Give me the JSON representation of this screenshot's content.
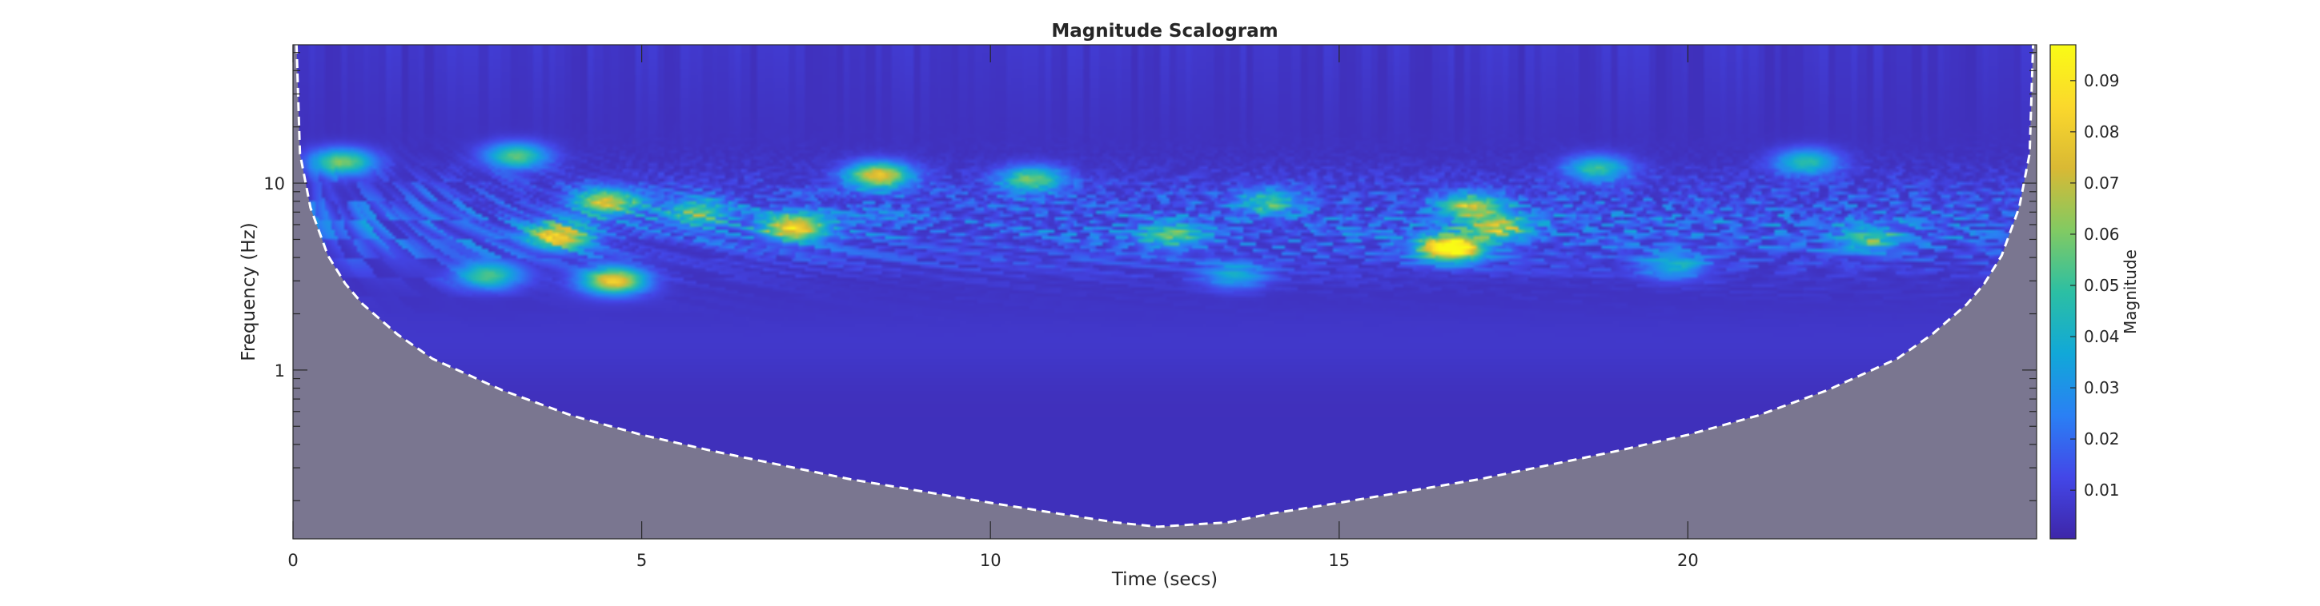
{
  "chart_data": {
    "type": "heatmap",
    "title": "Magnitude Scalogram",
    "xlabel": "Time (secs)",
    "ylabel": "Frequency (Hz)",
    "colorbar_label": "Magnitude",
    "x_scale": "linear",
    "y_scale": "log",
    "xlim": [
      0,
      25
    ],
    "ylim": [
      0.125,
      55
    ],
    "clim": [
      0.0005,
      0.097
    ],
    "xticks": [
      0,
      5,
      10,
      15,
      20
    ],
    "xtick_labels": [
      "0",
      "5",
      "10",
      "15",
      "20"
    ],
    "yticks": [
      1,
      10
    ],
    "ytick_labels": [
      "1",
      "10"
    ],
    "cticks": [
      0.01,
      0.02,
      0.03,
      0.04,
      0.05,
      0.06,
      0.07,
      0.08,
      0.09
    ],
    "ctick_labels": [
      "0.01",
      "0.02",
      "0.03",
      "0.04",
      "0.05",
      "0.06",
      "0.07",
      "0.08",
      "0.09"
    ],
    "colormap": "parula",
    "colormap_stops": [
      "#3e26a8",
      "#4347e8",
      "#2a80f4",
      "#11a8d8",
      "#2cbfa3",
      "#82ca62",
      "#d9b934",
      "#fbd82c",
      "#f9fb15"
    ],
    "coi_color": "#ffffff",
    "coi_fill_color": "#7a7690",
    "coi_style": "dashed",
    "cone_of_influence": [
      {
        "t": 0.05,
        "f": 55
      },
      {
        "t": 0.1,
        "f": 14.4
      },
      {
        "t": 0.25,
        "f": 7.4
      },
      {
        "t": 0.5,
        "f": 4.1
      },
      {
        "t": 0.75,
        "f": 2.9
      },
      {
        "t": 1.0,
        "f": 2.25
      },
      {
        "t": 1.5,
        "f": 1.55
      },
      {
        "t": 2.0,
        "f": 1.15
      },
      {
        "t": 3.0,
        "f": 0.78
      },
      {
        "t": 4.0,
        "f": 0.57
      },
      {
        "t": 5.0,
        "f": 0.45
      },
      {
        "t": 6.0,
        "f": 0.37
      },
      {
        "t": 7.0,
        "f": 0.31
      },
      {
        "t": 8.0,
        "f": 0.26
      },
      {
        "t": 9.0,
        "f": 0.225
      },
      {
        "t": 10.0,
        "f": 0.195
      },
      {
        "t": 11.0,
        "f": 0.17
      },
      {
        "t": 11.8,
        "f": 0.153
      },
      {
        "t": 12.4,
        "f": 0.145
      },
      {
        "t": 13.0,
        "f": 0.15
      },
      {
        "t": 13.4,
        "f": 0.153
      },
      {
        "t": 14.0,
        "f": 0.17
      },
      {
        "t": 15.0,
        "f": 0.195
      },
      {
        "t": 16.0,
        "f": 0.225
      },
      {
        "t": 17.0,
        "f": 0.26
      },
      {
        "t": 18.0,
        "f": 0.31
      },
      {
        "t": 19.0,
        "f": 0.37
      },
      {
        "t": 20.0,
        "f": 0.45
      },
      {
        "t": 21.0,
        "f": 0.57
      },
      {
        "t": 22.0,
        "f": 0.78
      },
      {
        "t": 23.0,
        "f": 1.15
      },
      {
        "t": 23.5,
        "f": 1.55
      },
      {
        "t": 24.0,
        "f": 2.25
      },
      {
        "t": 24.25,
        "f": 2.9
      },
      {
        "t": 24.5,
        "f": 4.1
      },
      {
        "t": 24.75,
        "f": 7.4
      },
      {
        "t": 24.9,
        "f": 14.4
      },
      {
        "t": 24.95,
        "f": 55
      }
    ],
    "hotspots": [
      {
        "t": 16.6,
        "f": 4.5,
        "magnitude": 0.097
      },
      {
        "t": 4.6,
        "f": 3.0,
        "magnitude": 0.075
      },
      {
        "t": 7.2,
        "f": 5.8,
        "magnitude": 0.075
      },
      {
        "t": 3.8,
        "f": 5.2,
        "magnitude": 0.068
      },
      {
        "t": 8.4,
        "f": 11.0,
        "magnitude": 0.072
      },
      {
        "t": 4.5,
        "f": 8.0,
        "magnitude": 0.062
      },
      {
        "t": 0.7,
        "f": 13.0,
        "magnitude": 0.055
      },
      {
        "t": 3.2,
        "f": 14.0,
        "magnitude": 0.05
      },
      {
        "t": 10.6,
        "f": 10.5,
        "magnitude": 0.05
      },
      {
        "t": 16.9,
        "f": 7.5,
        "magnitude": 0.055
      },
      {
        "t": 17.3,
        "f": 5.8,
        "magnitude": 0.05
      },
      {
        "t": 5.8,
        "f": 7.0,
        "magnitude": 0.042
      },
      {
        "t": 2.8,
        "f": 3.2,
        "magnitude": 0.045
      },
      {
        "t": 18.7,
        "f": 12.0,
        "magnitude": 0.042
      },
      {
        "t": 21.7,
        "f": 13.0,
        "magnitude": 0.042
      },
      {
        "t": 12.6,
        "f": 5.2,
        "magnitude": 0.035
      },
      {
        "t": 14.0,
        "f": 8.0,
        "magnitude": 0.035
      },
      {
        "t": 22.6,
        "f": 5.0,
        "magnitude": 0.035
      },
      {
        "t": 19.8,
        "f": 3.6,
        "magnitude": 0.032
      },
      {
        "t": 13.5,
        "f": 3.2,
        "magnitude": 0.03
      }
    ]
  }
}
